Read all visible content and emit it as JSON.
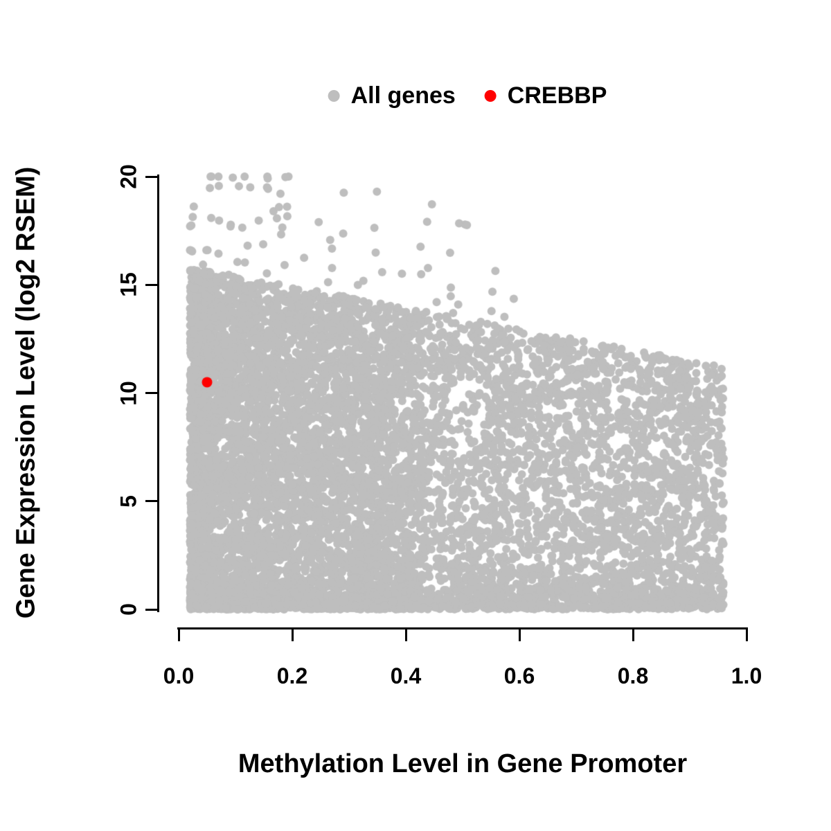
{
  "chart_data": {
    "type": "scatter",
    "title": "",
    "xlabel": "Methylation Level in Gene Promoter",
    "ylabel": "Gene Expression Level (log2 RSEM)",
    "xlim": [
      0,
      1
    ],
    "ylim": [
      0,
      20
    ],
    "xticks": [
      0.0,
      0.2,
      0.4,
      0.6,
      0.8,
      1.0
    ],
    "xtick_labels": [
      "0.0",
      "0.2",
      "0.4",
      "0.6",
      "0.8",
      "1.0"
    ],
    "yticks": [
      0,
      5,
      10,
      15,
      20
    ],
    "ytick_labels": [
      "0",
      "5",
      "10",
      "15",
      "20"
    ],
    "grid": false,
    "legend_position": "top-center",
    "legend": [
      {
        "label": "All genes",
        "color": "#BEBEBE"
      },
      {
        "label": "CREBBP",
        "color": "#FF0000"
      }
    ],
    "series": [
      {
        "name": "All genes",
        "color": "#BEBEBE",
        "marker": "filled-circle",
        "generated": true,
        "description": "Dense cloud of ~10k genes; very dense mass at methylation 0.02-0.43 spanning expression 0-15, sparser spread to methylation 0.96 with declining upper envelope from ~16 down to ~12, dense baseline near expression 0, rare outliers up to ~19.8 near methylation 0.3"
      },
      {
        "name": "CREBBP",
        "color": "#FF0000",
        "marker": "filled-circle",
        "points": [
          [
            0.05,
            10.5
          ]
        ]
      }
    ],
    "generator": {
      "seed": 20240501,
      "n_points": 9500,
      "low_x_fraction": 0.67,
      "x_low_min": 0.02,
      "x_low_max": 0.43,
      "x_low_power": 1.3,
      "x_high_min": 0.43,
      "x_high_max": 0.96,
      "ymax_intercept": 15.9,
      "ymax_slope": -4.9,
      "baseline_fraction": 0.16,
      "baseline_scale": 0.55,
      "outlier_fraction": 0.012,
      "outlier_x_max": 0.6,
      "outlier_span": 5.2,
      "y_cap": 20,
      "point_radius": 6,
      "highlight_radius": 7.5
    }
  }
}
